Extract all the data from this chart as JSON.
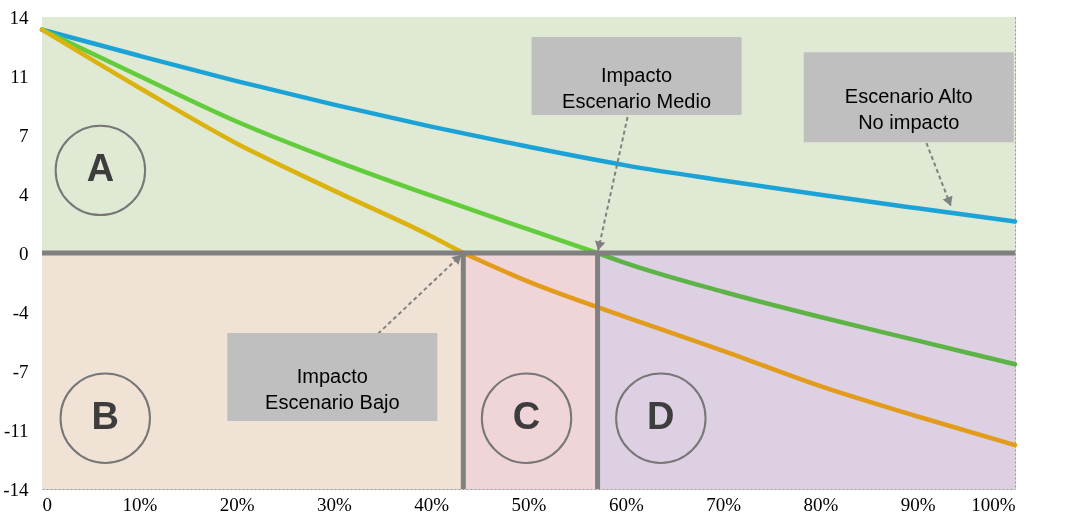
{
  "chart_data": {
    "type": "line",
    "xlim": [
      0,
      100
    ],
    "ylim": [
      -14,
      14
    ],
    "xticks": [
      0,
      {
        "value": 10,
        "label": "10%"
      },
      {
        "value": 20,
        "label": "20%"
      },
      {
        "value": 30,
        "label": "30%"
      },
      {
        "value": 40,
        "label": "40%"
      },
      {
        "value": 50,
        "label": "50%"
      },
      {
        "value": 60,
        "label": "60%"
      },
      {
        "value": 70,
        "label": "70%"
      },
      {
        "value": 80,
        "label": "80%"
      },
      {
        "value": 90,
        "label": "90%"
      },
      {
        "value": 100,
        "label": "100%"
      }
    ],
    "yticks": [
      14,
      {
        "value": 10.5,
        "label": "11"
      },
      7,
      {
        "value": 3.5,
        "label": "4"
      },
      0,
      {
        "value": -3.5,
        "label": "-4"
      },
      -7,
      {
        "value": -10.5,
        "label": "-11"
      },
      -14
    ],
    "grid": true,
    "line_style": "solid",
    "marker": "none",
    "series": [
      {
        "color": "#1ba3d8",
        "x": [
          0,
          10,
          20,
          30,
          40,
          50,
          60,
          70,
          80,
          90,
          100
        ],
        "values": [
          13.25,
          11.7,
          10.2,
          8.8,
          7.5,
          6.3,
          5.2,
          4.3,
          3.45,
          2.65,
          1.87
        ]
      },
      {
        "color": "#62cc3a",
        "x": [
          0,
          10,
          20,
          30,
          40,
          50,
          57.1
        ],
        "values": [
          13.25,
          10.5,
          7.8,
          5.5,
          3.4,
          1.4,
          0
        ]
      },
      {
        "color": "#5db346",
        "x": [
          57.1,
          60,
          70,
          80,
          90,
          100
        ],
        "values": [
          0,
          -0.6,
          -2.3,
          -3.8,
          -5.2,
          -6.6
        ]
      },
      {
        "color": "#dcb20e",
        "x": [
          0,
          10,
          20,
          30,
          40,
          43.3
        ],
        "values": [
          13.25,
          9.8,
          6.5,
          3.7,
          1.0,
          0
        ]
      },
      {
        "color": "#e39b1c",
        "x": [
          43.3,
          50,
          60,
          70,
          80,
          90,
          100
        ],
        "values": [
          0,
          -1.7,
          -3.8,
          -5.8,
          -7.9,
          -9.7,
          -11.4
        ]
      }
    ],
    "bands": [
      {
        "axis": "y",
        "from": 0,
        "to": 14,
        "label": "A",
        "color": "#dfe9d3"
      },
      {
        "axis": "x",
        "from": 0,
        "to": 43.3,
        "label": "B",
        "color": "#f0e3d6"
      },
      {
        "axis": "x",
        "from": 43.3,
        "to": 57.1,
        "label": "C",
        "color": "#efd5d8"
      },
      {
        "axis": "x",
        "from": 57.1,
        "to": 100,
        "label": "D",
        "color": "#ddd0e3"
      }
    ],
    "ref_lines": [
      {
        "axis": "y",
        "value": 0,
        "color": "#808080"
      },
      {
        "axis": "x",
        "value": 43.3,
        "color": "#808080"
      },
      {
        "axis": "x",
        "value": 57.1,
        "color": "#808080"
      }
    ],
    "annotations": [
      {
        "text": "Impacto\nEscenario Bajo",
        "x": 43.3,
        "y": 0
      },
      {
        "text": "Impacto\nEscenario Medio",
        "x": 57.1,
        "y": 0
      },
      {
        "text": "Escenario Alto\nNo impacto",
        "x": 93.5,
        "y": 2.65
      }
    ]
  }
}
